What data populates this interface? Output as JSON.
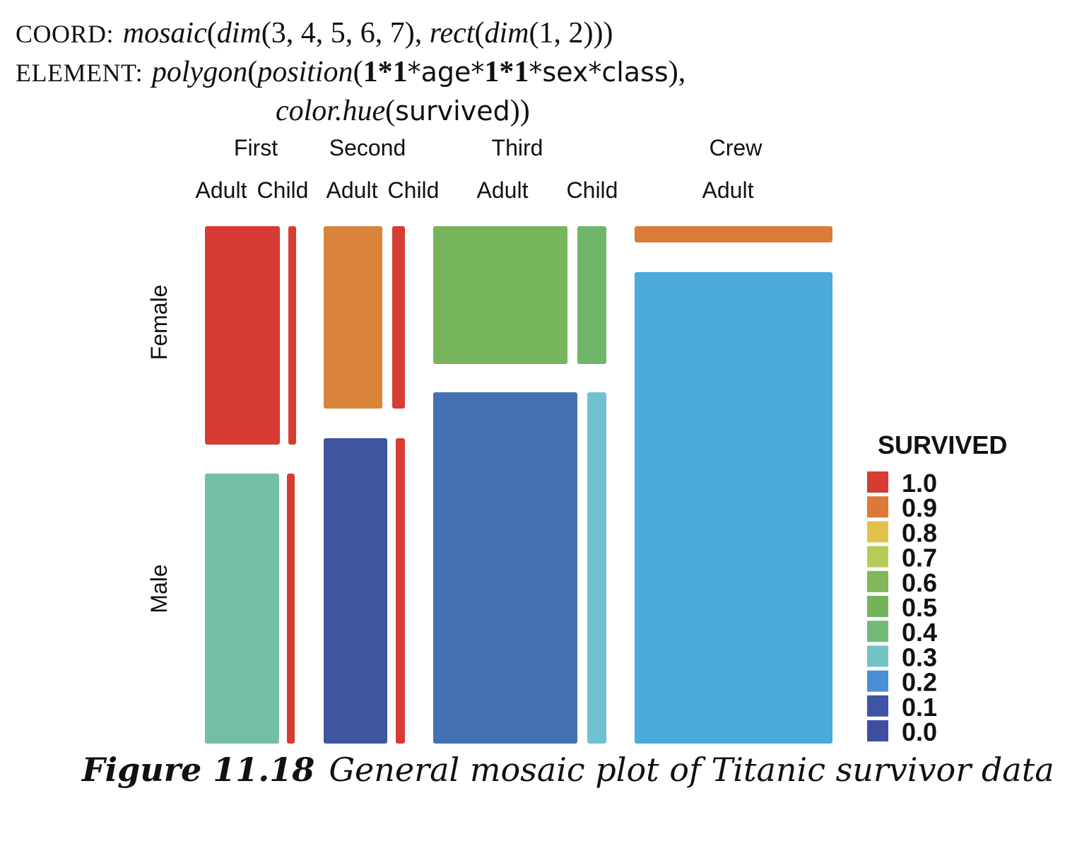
{
  "header": {
    "coord_kw": "COORD:",
    "coord_fn": "mosaic",
    "coord_dim_fn": "dim",
    "coord_dims": "(3, 4, 5, 6, 7), ",
    "coord_rect_fn": "rect",
    "coord_rect_dims": "(1, 2)))",
    "element_kw": "ELEMENT:",
    "element_fn": "polygon",
    "element_pos_fn": "position",
    "element_expr_a": "1*1",
    "element_expr_b": "*age*",
    "element_expr_c": "1*1",
    "element_expr_d": "*sex*class",
    "element_close": "),",
    "color_fn": "color.hue",
    "color_var": "survived",
    "color_close": "))"
  },
  "caption": {
    "figure_label": "Figure 11.18",
    "text": "General mosaic plot of Titanic survivor data"
  },
  "chart_data": {
    "type": "mosaic",
    "class_labels": [
      "First",
      "Second",
      "Third",
      "Crew"
    ],
    "age_labels": [
      {
        "class": "First",
        "labels": [
          "Adult",
          "Child"
        ]
      },
      {
        "class": "Second",
        "labels": [
          "Adult",
          "Child"
        ]
      },
      {
        "class": "Third",
        "labels": [
          "Adult",
          "Child"
        ]
      },
      {
        "class": "Crew",
        "labels": [
          "Adult"
        ]
      }
    ],
    "sex_labels": [
      "Female",
      "Male"
    ],
    "legend_title": "SURVIVED",
    "legend": [
      {
        "label": "1.0",
        "color": "#d63c33"
      },
      {
        "label": "0.9",
        "color": "#dc7838"
      },
      {
        "label": "0.8",
        "color": "#e3c24a"
      },
      {
        "label": "0.7",
        "color": "#b4cd58"
      },
      {
        "label": "0.6",
        "color": "#80b85a"
      },
      {
        "label": "0.5",
        "color": "#73b45a"
      },
      {
        "label": "0.4",
        "color": "#72ba78"
      },
      {
        "label": "0.3",
        "color": "#72c2c6"
      },
      {
        "label": "0.2",
        "color": "#4a8fd4"
      },
      {
        "label": "0.1",
        "color": "#3e55a5"
      },
      {
        "label": "0.0",
        "color": "#3f4fa0"
      }
    ],
    "cells": [
      {
        "class": "First",
        "age": "Adult",
        "sex": "Female",
        "count": 140,
        "survived": 0.97,
        "color": "#d63c33"
      },
      {
        "class": "First",
        "age": "Child",
        "sex": "Female",
        "count": 1,
        "survived": 1.0,
        "color": "#d63c33"
      },
      {
        "class": "First",
        "age": "Adult",
        "sex": "Male",
        "count": 175,
        "survived": 0.33,
        "color": "#74bea6"
      },
      {
        "class": "First",
        "age": "Child",
        "sex": "Male",
        "count": 5,
        "survived": 1.0,
        "color": "#d63c33"
      },
      {
        "class": "Second",
        "age": "Adult",
        "sex": "Female",
        "count": 80,
        "survived": 0.86,
        "color": "#d9843a"
      },
      {
        "class": "Second",
        "age": "Child",
        "sex": "Female",
        "count": 13,
        "survived": 1.0,
        "color": "#d63c33"
      },
      {
        "class": "Second",
        "age": "Adult",
        "sex": "Male",
        "count": 168,
        "survived": 0.08,
        "color": "#3e55a0"
      },
      {
        "class": "Second",
        "age": "Child",
        "sex": "Male",
        "count": 11,
        "survived": 1.0,
        "color": "#d63c33"
      },
      {
        "class": "Third",
        "age": "Adult",
        "sex": "Female",
        "count": 165,
        "survived": 0.46,
        "color": "#76b55b"
      },
      {
        "class": "Third",
        "age": "Child",
        "sex": "Female",
        "count": 31,
        "survived": 0.45,
        "color": "#70b66a"
      },
      {
        "class": "Third",
        "age": "Adult",
        "sex": "Male",
        "count": 462,
        "survived": 0.16,
        "color": "#4470b2"
      },
      {
        "class": "Third",
        "age": "Child",
        "sex": "Male",
        "count": 48,
        "survived": 0.27,
        "color": "#70c2d2"
      },
      {
        "class": "Crew",
        "age": "Adult",
        "sex": "Female",
        "count": 23,
        "survived": 0.87,
        "color": "#d97c3a"
      },
      {
        "class": "Crew",
        "age": "Adult",
        "sex": "Male",
        "count": 862,
        "survived": 0.22,
        "color": "#4aaadc"
      }
    ]
  }
}
